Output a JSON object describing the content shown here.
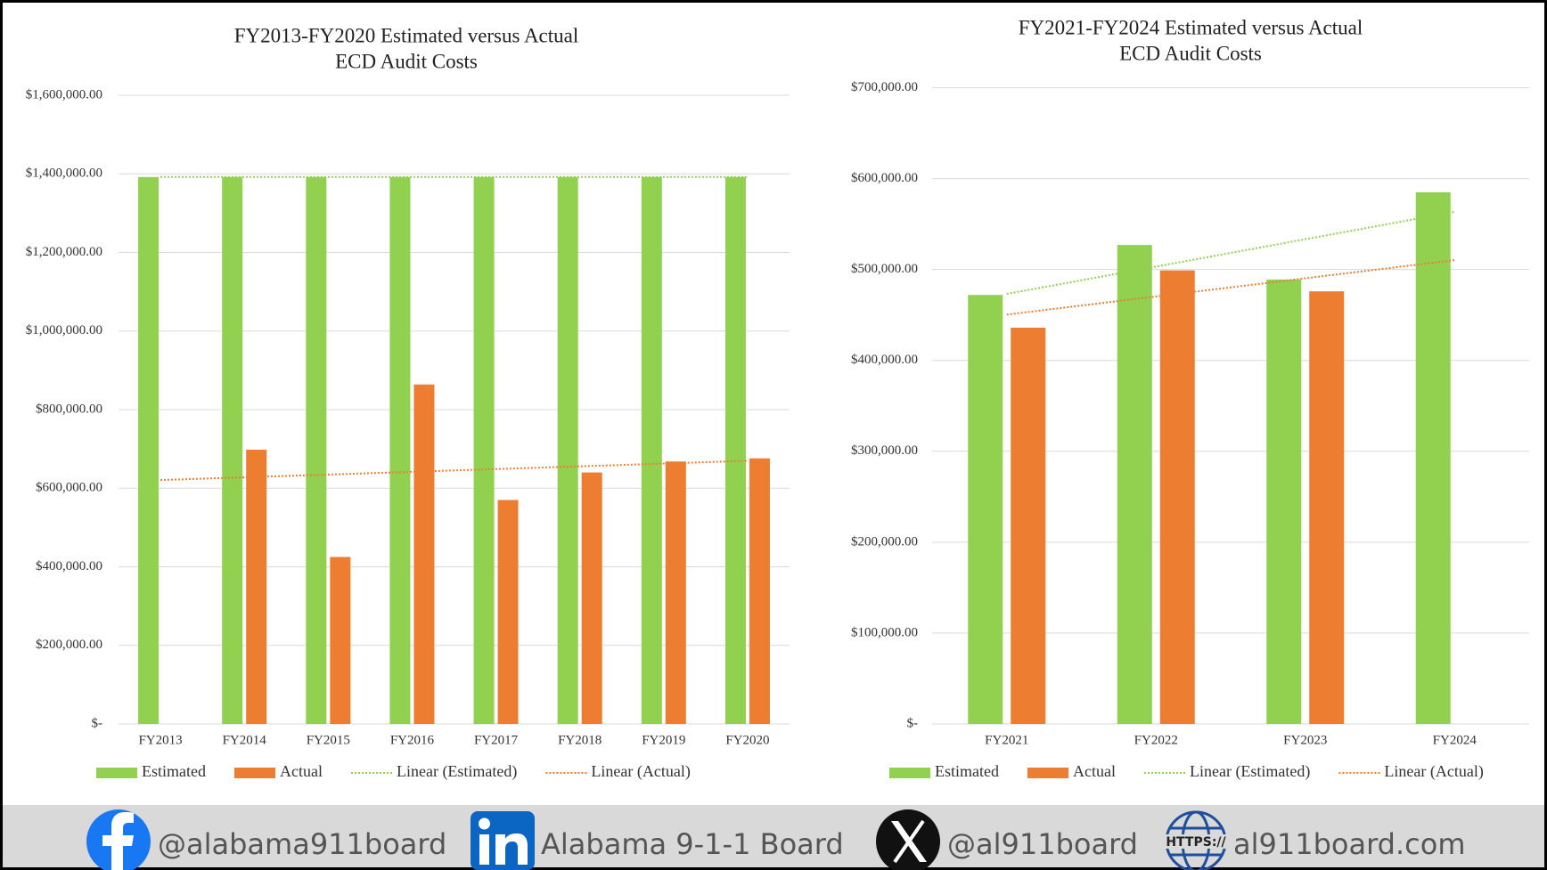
{
  "chart_data": [
    {
      "type": "bar",
      "title": [
        "FY2013-FY2020 Estimated versus Actual",
        "ECD Audit Costs"
      ],
      "categories": [
        "FY2013",
        "FY2014",
        "FY2015",
        "FY2016",
        "FY2017",
        "FY2018",
        "FY2019",
        "FY2020"
      ],
      "series": [
        {
          "name": "Estimated",
          "color": "#92d050",
          "values": [
            1392000,
            1392000,
            1392000,
            1392000,
            1392000,
            1392000,
            1392000,
            1392000
          ]
        },
        {
          "name": "Actual",
          "color": "#ed7d31",
          "values": [
            null,
            698000,
            425000,
            864000,
            570000,
            640000,
            668000,
            676000
          ]
        }
      ],
      "trendlines": [
        {
          "name": "Linear (Estimated)",
          "series": 0,
          "color": "#92d050"
        },
        {
          "name": "Linear (Actual)",
          "series": 1,
          "color": "#ed7d31"
        }
      ],
      "ylim": [
        0,
        1600000
      ],
      "yticks": [
        {
          "value": 0,
          "label": "$-"
        },
        {
          "value": 200000,
          "label": "$200,000.00"
        },
        {
          "value": 400000,
          "label": "$400,000.00"
        },
        {
          "value": 600000,
          "label": "$600,000.00"
        },
        {
          "value": 800000,
          "label": "$800,000.00"
        },
        {
          "value": 1000000,
          "label": "$1,000,000.00"
        },
        {
          "value": 1200000,
          "label": "$1,200,000.00"
        },
        {
          "value": 1400000,
          "label": "$1,400,000.00"
        },
        {
          "value": 1600000,
          "label": "$1,600,000.00"
        }
      ],
      "grid": true,
      "legend": "bottom"
    },
    {
      "type": "bar",
      "title": [
        "FY2021-FY2024 Estimated versus Actual",
        "ECD Audit Costs"
      ],
      "categories": [
        "FY2021",
        "FY2022",
        "FY2023",
        "FY2024"
      ],
      "series": [
        {
          "name": "Estimated",
          "color": "#92d050",
          "values": [
            472000,
            527000,
            489000,
            585000
          ]
        },
        {
          "name": "Actual",
          "color": "#ed7d31",
          "values": [
            436000,
            499000,
            476000,
            null
          ]
        }
      ],
      "trendlines": [
        {
          "name": "Linear (Estimated)",
          "series": 0,
          "color": "#92d050"
        },
        {
          "name": "Linear (Actual)",
          "series": 1,
          "color": "#ed7d31"
        }
      ],
      "ylim": [
        0,
        700000
      ],
      "yticks": [
        {
          "value": 0,
          "label": "$-"
        },
        {
          "value": 100000,
          "label": "$100,000.00"
        },
        {
          "value": 200000,
          "label": "$200,000.00"
        },
        {
          "value": 300000,
          "label": "$300,000.00"
        },
        {
          "value": 400000,
          "label": "$400,000.00"
        },
        {
          "value": 500000,
          "label": "$500,000.00"
        },
        {
          "value": 600000,
          "label": "$600,000.00"
        },
        {
          "value": 700000,
          "label": "$700,000.00"
        }
      ],
      "grid": true,
      "legend": "bottom"
    }
  ],
  "footer": {
    "links": [
      "@alabama911board",
      "Alabama 9-1-1 Board",
      "@al911board",
      "al911board.com"
    ]
  }
}
